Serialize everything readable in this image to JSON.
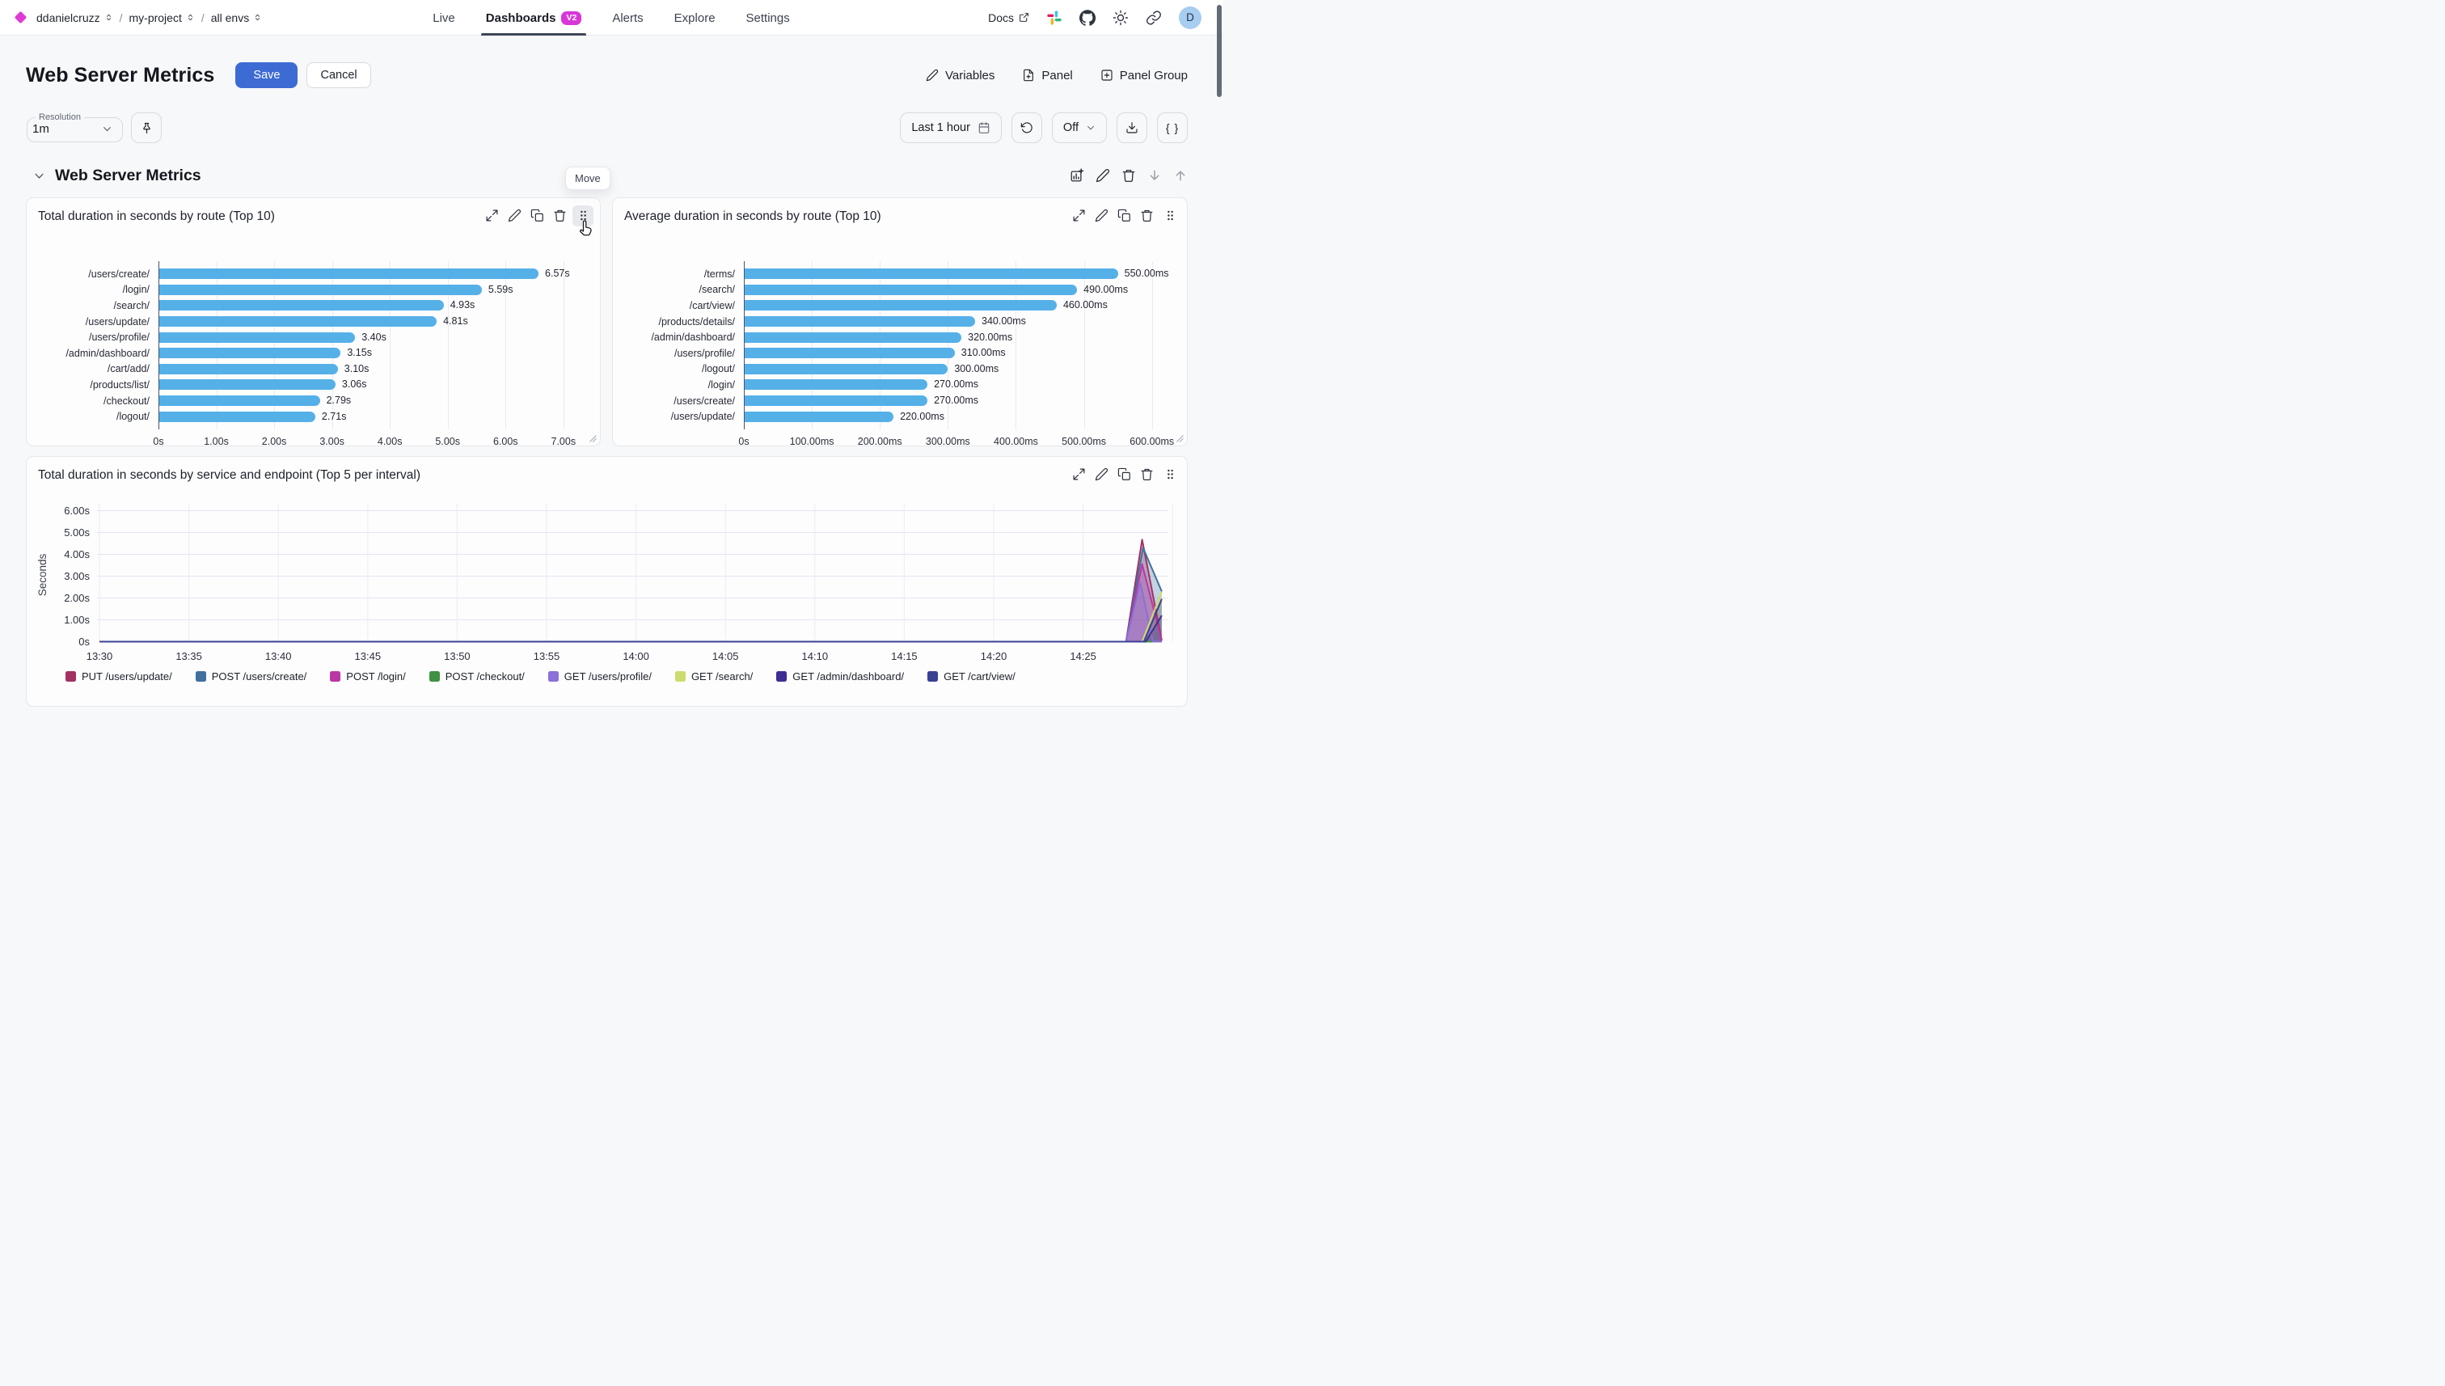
{
  "nav": {
    "breadcrumbs": [
      {
        "label": "ddanielcruzz"
      },
      {
        "label": "my-project"
      },
      {
        "label": "all envs"
      }
    ],
    "tabs": [
      {
        "label": "Live",
        "active": false
      },
      {
        "label": "Dashboards",
        "badge": "V2",
        "active": true
      },
      {
        "label": "Alerts",
        "active": false
      },
      {
        "label": "Explore",
        "active": false
      },
      {
        "label": "Settings",
        "active": false
      }
    ],
    "docs_label": "Docs",
    "avatar_initial": "D"
  },
  "header": {
    "title": "Web Server Metrics",
    "save_label": "Save",
    "cancel_label": "Cancel",
    "variables_label": "Variables",
    "panel_label": "Panel",
    "panel_group_label": "Panel Group"
  },
  "toolbar": {
    "resolution_label": "Resolution",
    "resolution_value": "1m",
    "time_range": "Last 1 hour",
    "auto_refresh": "Off",
    "braces_label": "{ }"
  },
  "section": {
    "title": "Web Server Metrics",
    "move_tooltip": "Move"
  },
  "colors": {
    "accent_magenta": "#d936d9",
    "save_blue": "#3d6bd4",
    "bar_blue": "#55b0e8"
  },
  "chart_data": [
    {
      "type": "bar",
      "orientation": "horizontal",
      "title": "Total duration in seconds by route (Top 10)",
      "categories": [
        "/users/create/",
        "/login/",
        "/search/",
        "/users/update/",
        "/users/profile/",
        "/admin/dashboard/",
        "/cart/add/",
        "/products/list/",
        "/checkout/",
        "/logout/"
      ],
      "values_seconds": [
        6.57,
        5.59,
        4.93,
        4.81,
        3.4,
        3.15,
        3.1,
        3.06,
        2.79,
        2.71
      ],
      "value_labels": [
        "6.57s",
        "5.59s",
        "4.93s",
        "4.81s",
        "3.40s",
        "3.15s",
        "3.10s",
        "3.06s",
        "2.79s",
        "2.71s"
      ],
      "x_ticks": [
        {
          "value": 0,
          "label": "0s"
        },
        {
          "value": 1,
          "label": "1.00s"
        },
        {
          "value": 2,
          "label": "2.00s"
        },
        {
          "value": 3,
          "label": "3.00s"
        },
        {
          "value": 4,
          "label": "4.00s"
        },
        {
          "value": 5,
          "label": "5.00s"
        },
        {
          "value": 6,
          "label": "6.00s"
        },
        {
          "value": 7,
          "label": "7.00s"
        }
      ],
      "axis_max": 7.45,
      "bar_color": "#55b0e8"
    },
    {
      "type": "bar",
      "orientation": "horizontal",
      "title": "Average duration in seconds by route (Top 10)",
      "categories": [
        "/terms/",
        "/search/",
        "/cart/view/",
        "/products/details/",
        "/admin/dashboard/",
        "/users/profile/",
        "/logout/",
        "/login/",
        "/users/create/",
        "/users/update/"
      ],
      "values_ms": [
        550,
        490,
        460,
        340,
        320,
        310,
        300,
        270,
        270,
        220
      ],
      "value_labels": [
        "550.00ms",
        "490.00ms",
        "460.00ms",
        "340.00ms",
        "320.00ms",
        "310.00ms",
        "300.00ms",
        "270.00ms",
        "270.00ms",
        "220.00ms"
      ],
      "x_ticks": [
        {
          "value": 0,
          "label": "0s"
        },
        {
          "value": 100,
          "label": "100.00ms"
        },
        {
          "value": 200,
          "label": "200.00ms"
        },
        {
          "value": 300,
          "label": "300.00ms"
        },
        {
          "value": 400,
          "label": "400.00ms"
        },
        {
          "value": 500,
          "label": "500.00ms"
        },
        {
          "value": 600,
          "label": "600.00ms"
        }
      ],
      "axis_max": 636,
      "bar_color": "#55b0e8"
    },
    {
      "type": "area",
      "title": "Total duration in seconds by service and endpoint (Top 5 per interval)",
      "ylabel": "Seconds",
      "ylim": [
        0,
        6.2
      ],
      "y_ticks": [
        {
          "value": 0,
          "label": "0s"
        },
        {
          "value": 1,
          "label": "1.00s"
        },
        {
          "value": 2,
          "label": "2.00s"
        },
        {
          "value": 3,
          "label": "3.00s"
        },
        {
          "value": 4,
          "label": "4.00s"
        },
        {
          "value": 5,
          "label": "5.00s"
        },
        {
          "value": 6,
          "label": "6.00s"
        }
      ],
      "x_ticks": [
        "13:30",
        "13:35",
        "13:40",
        "13:45",
        "13:50",
        "13:55",
        "14:00",
        "14:05",
        "14:10",
        "14:15",
        "14:20",
        "14:25"
      ],
      "x_minutes_per_tick": 5,
      "legend_position": "bottom",
      "series": [
        {
          "name": "PUT /users/update/",
          "color": "#a13262",
          "points": [
            [
              0,
              0
            ],
            [
              57.4,
              0
            ],
            [
              58.3,
              4.67
            ],
            [
              59.4,
              0.05
            ]
          ]
        },
        {
          "name": "POST /users/create/",
          "color": "#41709e",
          "points": [
            [
              0,
              0
            ],
            [
              57.4,
              0
            ],
            [
              58.35,
              4.3
            ],
            [
              59.4,
              2.3
            ]
          ]
        },
        {
          "name": "POST /login/",
          "color": "#bb36a5",
          "points": [
            [
              0,
              0
            ],
            [
              57.4,
              0
            ],
            [
              58.3,
              3.55
            ],
            [
              59.4,
              0.05
            ]
          ]
        },
        {
          "name": "POST /checkout/",
          "color": "#3f9243",
          "points": [
            [
              0,
              0
            ],
            [
              59.4,
              0
            ]
          ]
        },
        {
          "name": "GET /users/profile/",
          "color": "#8a70d8",
          "points": [
            [
              0,
              0
            ],
            [
              57.4,
              0
            ],
            [
              58.2,
              2.7
            ],
            [
              58.9,
              0
            ],
            [
              59.4,
              0
            ]
          ]
        },
        {
          "name": "GET /search/",
          "color": "#ccdc6d",
          "points": [
            [
              0,
              0
            ],
            [
              58.3,
              0
            ],
            [
              59.4,
              2.28
            ]
          ]
        },
        {
          "name": "GET /admin/dashboard/",
          "color": "#3f2d92",
          "points": [
            [
              0,
              0
            ],
            [
              58.5,
              0
            ],
            [
              59.4,
              1.2
            ]
          ]
        },
        {
          "name": "GET /cart/view/",
          "color": "#3a4193",
          "points": [
            [
              0,
              0
            ],
            [
              58.4,
              0
            ],
            [
              59.4,
              1.95
            ]
          ]
        }
      ]
    }
  ]
}
